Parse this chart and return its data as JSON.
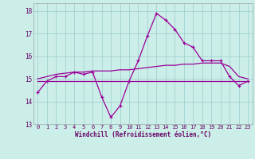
{
  "xlabel": "Windchill (Refroidissement éolien,°C)",
  "x": [
    0,
    1,
    2,
    3,
    4,
    5,
    6,
    7,
    8,
    9,
    10,
    11,
    12,
    13,
    14,
    15,
    16,
    17,
    18,
    19,
    20,
    21,
    22,
    23
  ],
  "y_actual": [
    14.4,
    14.9,
    15.1,
    15.1,
    15.3,
    15.2,
    15.3,
    14.2,
    13.3,
    13.8,
    14.9,
    15.8,
    16.9,
    17.9,
    17.6,
    17.2,
    16.6,
    16.4,
    15.8,
    15.8,
    15.8,
    15.1,
    14.7,
    14.9
  ],
  "y_trend": [
    15.0,
    15.1,
    15.2,
    15.25,
    15.3,
    15.3,
    15.35,
    15.35,
    15.35,
    15.4,
    15.4,
    15.45,
    15.5,
    15.55,
    15.6,
    15.6,
    15.65,
    15.65,
    15.7,
    15.7,
    15.7,
    15.55,
    15.1,
    15.0
  ],
  "y_flat": [
    14.9,
    14.9,
    14.9,
    14.9,
    14.9,
    14.9,
    14.9,
    14.9,
    14.9,
    14.9,
    14.9,
    14.9,
    14.9,
    14.9,
    14.9,
    14.9,
    14.9,
    14.9,
    14.9,
    14.9,
    14.9,
    14.9,
    14.9,
    14.9
  ],
  "ylim": [
    13.0,
    18.35
  ],
  "yticks": [
    13,
    14,
    15,
    16,
    17,
    18
  ],
  "xticks": [
    0,
    1,
    2,
    3,
    4,
    5,
    6,
    7,
    8,
    9,
    10,
    11,
    12,
    13,
    14,
    15,
    16,
    17,
    18,
    19,
    20,
    21,
    22,
    23
  ],
  "line_color": "#990099",
  "bg_color": "#cceee8",
  "grid_color": "#99cccc"
}
